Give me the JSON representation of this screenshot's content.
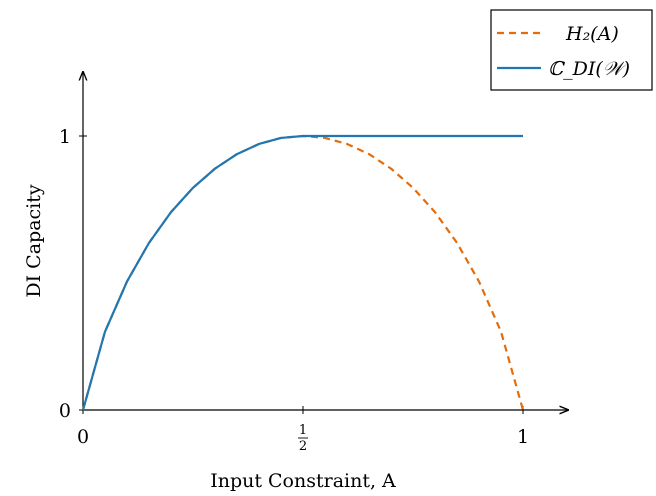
{
  "chart_data": {
    "type": "line",
    "xlabel": "Input Constraint, A",
    "ylabel": "DI Capacity",
    "xlim": [
      0,
      1
    ],
    "ylim": [
      0,
      1
    ],
    "x_ticks": [
      {
        "value": 0,
        "label": "0"
      },
      {
        "value": 0.5,
        "label": "1/2"
      },
      {
        "value": 1,
        "label": "1"
      }
    ],
    "y_ticks": [
      {
        "value": 0,
        "label": "0"
      },
      {
        "value": 1,
        "label": "1"
      }
    ],
    "grid": false,
    "legend_position": "top-right",
    "series": [
      {
        "name": "H₂(A)",
        "style": "dashed",
        "color": "#e46c0a",
        "x": [
          0,
          0.05,
          0.1,
          0.15,
          0.2,
          0.25,
          0.3,
          0.35,
          0.4,
          0.45,
          0.5,
          0.55,
          0.6,
          0.65,
          0.7,
          0.75,
          0.8,
          0.85,
          0.9,
          0.95,
          1
        ],
        "y": [
          0,
          0.286,
          0.469,
          0.61,
          0.722,
          0.811,
          0.881,
          0.934,
          0.971,
          0.993,
          1,
          0.993,
          0.971,
          0.934,
          0.881,
          0.811,
          0.722,
          0.61,
          0.469,
          0.286,
          0
        ]
      },
      {
        "name": "ℂ_DI(𝒲)",
        "style": "solid",
        "color": "#1f77b4",
        "x": [
          0,
          0.05,
          0.1,
          0.15,
          0.2,
          0.25,
          0.3,
          0.35,
          0.4,
          0.45,
          0.5,
          0.6,
          0.7,
          0.8,
          0.9,
          1
        ],
        "y": [
          0,
          0.286,
          0.469,
          0.61,
          0.722,
          0.811,
          0.881,
          0.934,
          0.971,
          0.993,
          1,
          1,
          1,
          1,
          1,
          1
        ]
      }
    ]
  }
}
